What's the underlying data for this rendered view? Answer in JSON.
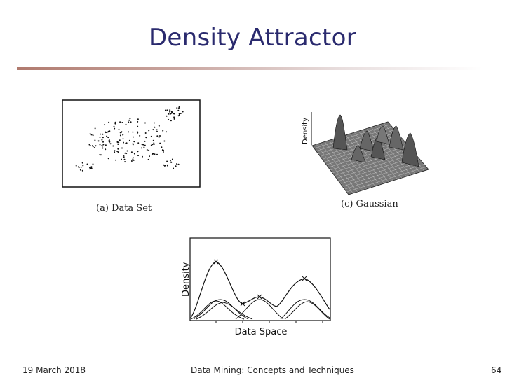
{
  "slide": {
    "title": "Density Attractor"
  },
  "figures": {
    "data_set": {
      "caption": "(a) Data Set"
    },
    "gaussian": {
      "caption": "(c) Gaussian",
      "axis_label": "Density"
    },
    "density_curve": {
      "ylabel": "Density",
      "xlabel": "Data Space"
    }
  },
  "footer": {
    "date": "19 March 2018",
    "course": "Data Mining: Concepts and Techniques",
    "page": "64"
  }
}
